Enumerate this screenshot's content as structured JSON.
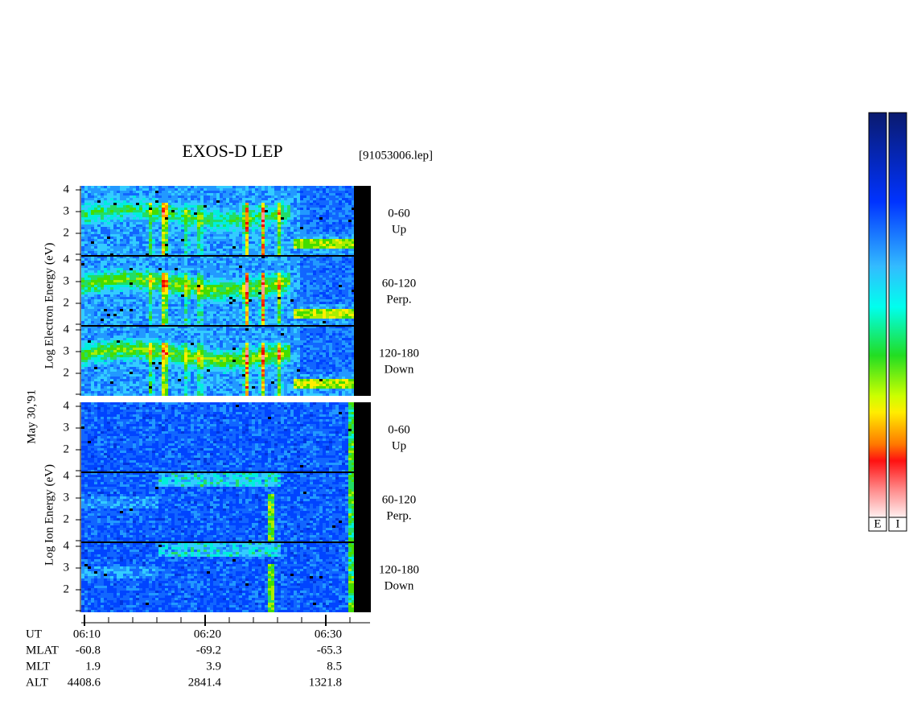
{
  "title": "EXOS-D LEP",
  "file": "[91053006.lep]",
  "date": "May 30,'91",
  "electron": {
    "axis_label": "Log  Electron  Energy (eV)",
    "panels": [
      {
        "range": "0-60",
        "direction": "Up"
      },
      {
        "range": "60-120",
        "direction": "Perp."
      },
      {
        "range": "120-180",
        "direction": "Down"
      }
    ]
  },
  "ion": {
    "axis_label": "Log   Ion   Energy (eV)",
    "panels": [
      {
        "range": "0-60",
        "direction": "Up"
      },
      {
        "range": "60-120",
        "direction": "Perp."
      },
      {
        "range": "120-180",
        "direction": "Down"
      }
    ]
  },
  "energy_ticks": [
    4,
    3,
    2
  ],
  "ut_label": "UT",
  "time_ticks": [
    "06:10",
    "06:20",
    "06:30"
  ],
  "orbit": [
    {
      "label": "MLAT",
      "values": [
        -60.8,
        -69.2,
        -65.3
      ]
    },
    {
      "label": "MLT",
      "values": [
        1.9,
        3.9,
        8.5
      ]
    },
    {
      "label": "ALT",
      "values": [
        4408.6,
        2841.4,
        1321.8
      ]
    }
  ],
  "colorbars": [
    "E",
    "I"
  ]
}
